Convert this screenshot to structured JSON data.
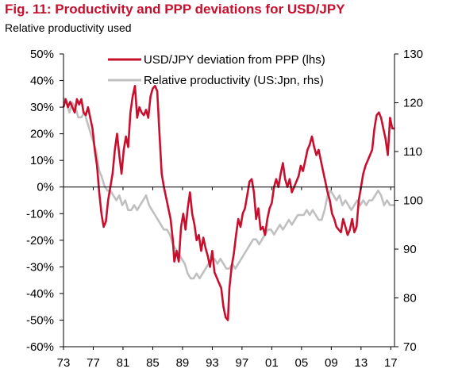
{
  "figure": {
    "title": "Fig. 11: Productivity and PPP deviations for USD/JPY",
    "subtitle": "Relative productivity used"
  },
  "colors": {
    "usd_jpy": "#c8102e",
    "productivity": "#c0c0c0",
    "title": "#c8102e",
    "axis": "#000000"
  },
  "chart_data": {
    "type": "line",
    "legend_position": "top",
    "grid": false,
    "x_range": [
      1973,
      2017.5
    ],
    "x_tick_labels": [
      "73",
      "77",
      "81",
      "85",
      "89",
      "93",
      "97",
      "01",
      "05",
      "09",
      "13",
      "17"
    ],
    "x_tick_years": [
      1973,
      1977,
      1981,
      1985,
      1989,
      1993,
      1997,
      2001,
      2005,
      2009,
      2013,
      2017
    ],
    "y_left_range": [
      -60,
      50
    ],
    "y_left_tick_values": [
      50,
      40,
      30,
      20,
      10,
      0,
      -10,
      -20,
      -30,
      -40,
      -50,
      -60
    ],
    "y_left_tick_labels": [
      "50%",
      "40%",
      "30%",
      "20%",
      "10%",
      "0%",
      "-10%",
      "-20%",
      "-30%",
      "-40%",
      "-50%",
      "-60%"
    ],
    "y_right_range": [
      70,
      130
    ],
    "y_right_tick_values": [
      130,
      120,
      110,
      100,
      90,
      80,
      70
    ],
    "y_right_tick_labels": [
      "130",
      "120",
      "110",
      "100",
      "90",
      "80",
      "70"
    ],
    "zero_line": 0,
    "series": [
      {
        "name": "USD/JPY deviation from PPP (lhs)",
        "axis": "left",
        "points": [
          [
            1973.0,
            30
          ],
          [
            1973.3,
            33
          ],
          [
            1973.6,
            30
          ],
          [
            1973.9,
            32
          ],
          [
            1974.2,
            30
          ],
          [
            1974.5,
            28
          ],
          [
            1974.8,
            33
          ],
          [
            1975.1,
            31
          ],
          [
            1975.4,
            33
          ],
          [
            1975.7,
            28
          ],
          [
            1976.0,
            27
          ],
          [
            1976.3,
            30
          ],
          [
            1976.6,
            26
          ],
          [
            1976.9,
            22
          ],
          [
            1977.2,
            14
          ],
          [
            1977.5,
            8
          ],
          [
            1977.8,
            -2
          ],
          [
            1978.1,
            -10
          ],
          [
            1978.4,
            -15
          ],
          [
            1978.7,
            -13
          ],
          [
            1979.0,
            -5
          ],
          [
            1979.3,
            0
          ],
          [
            1979.6,
            5
          ],
          [
            1979.9,
            14
          ],
          [
            1980.2,
            20
          ],
          [
            1980.5,
            12
          ],
          [
            1980.8,
            5
          ],
          [
            1981.1,
            14
          ],
          [
            1981.4,
            19
          ],
          [
            1981.7,
            15
          ],
          [
            1982.0,
            28
          ],
          [
            1982.3,
            34
          ],
          [
            1982.6,
            38
          ],
          [
            1982.9,
            26
          ],
          [
            1983.2,
            30
          ],
          [
            1983.5,
            28
          ],
          [
            1983.8,
            27
          ],
          [
            1984.1,
            29
          ],
          [
            1984.4,
            26
          ],
          [
            1984.7,
            34
          ],
          [
            1985.0,
            37
          ],
          [
            1985.3,
            38
          ],
          [
            1985.6,
            36
          ],
          [
            1985.9,
            20
          ],
          [
            1986.2,
            5
          ],
          [
            1986.5,
            0
          ],
          [
            1986.8,
            -4
          ],
          [
            1987.1,
            -8
          ],
          [
            1987.4,
            -12
          ],
          [
            1987.7,
            -20
          ],
          [
            1987.9,
            -28
          ],
          [
            1988.2,
            -24
          ],
          [
            1988.5,
            -28
          ],
          [
            1988.8,
            -15
          ],
          [
            1989.1,
            -10
          ],
          [
            1989.4,
            -16
          ],
          [
            1989.7,
            -8
          ],
          [
            1990.0,
            -2
          ],
          [
            1990.3,
            -10
          ],
          [
            1990.6,
            -14
          ],
          [
            1990.9,
            -20
          ],
          [
            1991.2,
            -18
          ],
          [
            1991.5,
            -24
          ],
          [
            1991.8,
            -19
          ],
          [
            1992.1,
            -23
          ],
          [
            1992.4,
            -26
          ],
          [
            1992.7,
            -30
          ],
          [
            1993.0,
            -24
          ],
          [
            1993.3,
            -32
          ],
          [
            1993.6,
            -34
          ],
          [
            1993.9,
            -36
          ],
          [
            1994.2,
            -38
          ],
          [
            1994.5,
            -45
          ],
          [
            1994.8,
            -49
          ],
          [
            1995.1,
            -50
          ],
          [
            1995.3,
            -38
          ],
          [
            1995.6,
            -30
          ],
          [
            1995.9,
            -25
          ],
          [
            1996.2,
            -18
          ],
          [
            1996.5,
            -12
          ],
          [
            1996.8,
            -15
          ],
          [
            1997.1,
            -10
          ],
          [
            1997.4,
            -8
          ],
          [
            1997.7,
            -3
          ],
          [
            1998.0,
            2
          ],
          [
            1998.3,
            3
          ],
          [
            1998.6,
            -2
          ],
          [
            1998.9,
            -12
          ],
          [
            1999.2,
            -8
          ],
          [
            1999.5,
            -16
          ],
          [
            1999.8,
            -15
          ],
          [
            2000.1,
            -18
          ],
          [
            2000.4,
            -12
          ],
          [
            2000.7,
            -8
          ],
          [
            2001.0,
            -6
          ],
          [
            2001.3,
            0
          ],
          [
            2001.6,
            3
          ],
          [
            2001.9,
            0
          ],
          [
            2002.2,
            5
          ],
          [
            2002.5,
            9
          ],
          [
            2002.8,
            3
          ],
          [
            2003.1,
            0
          ],
          [
            2003.4,
            3
          ],
          [
            2003.7,
            -2
          ],
          [
            2004.0,
            0
          ],
          [
            2004.3,
            2
          ],
          [
            2004.6,
            4
          ],
          [
            2004.9,
            8
          ],
          [
            2005.2,
            6
          ],
          [
            2005.5,
            10
          ],
          [
            2005.8,
            14
          ],
          [
            2006.1,
            16
          ],
          [
            2006.4,
            19
          ],
          [
            2006.7,
            15
          ],
          [
            2007.0,
            12
          ],
          [
            2007.3,
            14
          ],
          [
            2007.6,
            10
          ],
          [
            2007.9,
            6
          ],
          [
            2008.2,
            2
          ],
          [
            2008.5,
            -2
          ],
          [
            2008.8,
            -5
          ],
          [
            2009.1,
            -10
          ],
          [
            2009.4,
            -12
          ],
          [
            2009.7,
            -15
          ],
          [
            2010.0,
            -16
          ],
          [
            2010.3,
            -17
          ],
          [
            2010.6,
            -12
          ],
          [
            2010.9,
            -15
          ],
          [
            2011.2,
            -18
          ],
          [
            2011.5,
            -16
          ],
          [
            2011.8,
            -12
          ],
          [
            2012.1,
            -17
          ],
          [
            2012.4,
            -15
          ],
          [
            2012.7,
            -5
          ],
          [
            2013.0,
            0
          ],
          [
            2013.3,
            5
          ],
          [
            2013.6,
            8
          ],
          [
            2013.9,
            10
          ],
          [
            2014.2,
            12
          ],
          [
            2014.5,
            14
          ],
          [
            2014.8,
            22
          ],
          [
            2015.1,
            27
          ],
          [
            2015.4,
            28
          ],
          [
            2015.7,
            26
          ],
          [
            2016.0,
            22
          ],
          [
            2016.3,
            18
          ],
          [
            2016.6,
            12
          ],
          [
            2016.9,
            26
          ],
          [
            2017.2,
            22
          ],
          [
            2017.5,
            22
          ]
        ]
      },
      {
        "name": "Relative productivity (US:Jpn, rhs)",
        "axis": "right",
        "points": [
          [
            1973.0,
            121
          ],
          [
            1973.4,
            120
          ],
          [
            1973.8,
            118
          ],
          [
            1974.2,
            120
          ],
          [
            1974.6,
            119
          ],
          [
            1975.0,
            117
          ],
          [
            1975.4,
            117
          ],
          [
            1975.8,
            118
          ],
          [
            1976.2,
            116
          ],
          [
            1976.6,
            114
          ],
          [
            1977.0,
            112
          ],
          [
            1977.4,
            110
          ],
          [
            1977.8,
            106
          ],
          [
            1978.1,
            105
          ],
          [
            1978.5,
            103
          ],
          [
            1978.9,
            102
          ],
          [
            1979.3,
            102
          ],
          [
            1979.7,
            101
          ],
          [
            1980.1,
            100
          ],
          [
            1980.5,
            101
          ],
          [
            1980.9,
            99
          ],
          [
            1981.3,
            100
          ],
          [
            1981.7,
            98
          ],
          [
            1982.1,
            98
          ],
          [
            1982.5,
            99
          ],
          [
            1982.9,
            98
          ],
          [
            1983.3,
            99
          ],
          [
            1983.7,
            100
          ],
          [
            1984.1,
            101
          ],
          [
            1984.5,
            99
          ],
          [
            1984.9,
            98
          ],
          [
            1985.3,
            97
          ],
          [
            1985.7,
            96
          ],
          [
            1986.1,
            95
          ],
          [
            1986.5,
            94
          ],
          [
            1986.9,
            94
          ],
          [
            1987.3,
            93
          ],
          [
            1987.7,
            91
          ],
          [
            1988.1,
            90
          ],
          [
            1988.5,
            89
          ],
          [
            1988.9,
            88
          ],
          [
            1989.3,
            87
          ],
          [
            1989.7,
            85
          ],
          [
            1990.1,
            84
          ],
          [
            1990.5,
            84
          ],
          [
            1990.9,
            85
          ],
          [
            1991.3,
            84
          ],
          [
            1991.7,
            85
          ],
          [
            1992.1,
            86
          ],
          [
            1992.5,
            87
          ],
          [
            1992.9,
            88
          ],
          [
            1993.3,
            88
          ],
          [
            1993.7,
            87
          ],
          [
            1994.1,
            88
          ],
          [
            1994.5,
            87
          ],
          [
            1994.9,
            86
          ],
          [
            1995.3,
            86
          ],
          [
            1995.7,
            87
          ],
          [
            1996.1,
            86
          ],
          [
            1996.5,
            87
          ],
          [
            1996.9,
            88
          ],
          [
            1997.3,
            89
          ],
          [
            1997.7,
            90
          ],
          [
            1998.1,
            91
          ],
          [
            1998.5,
            92
          ],
          [
            1998.9,
            92
          ],
          [
            1999.3,
            91
          ],
          [
            1999.7,
            92
          ],
          [
            2000.1,
            93
          ],
          [
            2000.5,
            94
          ],
          [
            2000.9,
            94
          ],
          [
            2001.3,
            93
          ],
          [
            2001.7,
            94
          ],
          [
            2002.1,
            95
          ],
          [
            2002.5,
            94
          ],
          [
            2002.9,
            95
          ],
          [
            2003.3,
            96
          ],
          [
            2003.7,
            95
          ],
          [
            2004.1,
            96
          ],
          [
            2004.5,
            97
          ],
          [
            2004.9,
            97
          ],
          [
            2005.3,
            97
          ],
          [
            2005.7,
            98
          ],
          [
            2006.1,
            97
          ],
          [
            2006.5,
            98
          ],
          [
            2006.9,
            97
          ],
          [
            2007.3,
            96
          ],
          [
            2007.7,
            96
          ],
          [
            2008.1,
            98
          ],
          [
            2008.5,
            101
          ],
          [
            2008.9,
            102
          ],
          [
            2009.3,
            101
          ],
          [
            2009.7,
            100
          ],
          [
            2010.1,
            101
          ],
          [
            2010.5,
            99
          ],
          [
            2010.9,
            100
          ],
          [
            2011.3,
            99
          ],
          [
            2011.7,
            98
          ],
          [
            2012.1,
            99
          ],
          [
            2012.5,
            100
          ],
          [
            2012.9,
            99
          ],
          [
            2013.3,
            100
          ],
          [
            2013.7,
            99
          ],
          [
            2014.1,
            100
          ],
          [
            2014.5,
            100
          ],
          [
            2014.9,
            101
          ],
          [
            2015.3,
            102
          ],
          [
            2015.7,
            101
          ],
          [
            2016.1,
            99
          ],
          [
            2016.5,
            100
          ],
          [
            2016.9,
            99
          ],
          [
            2017.3,
            99
          ],
          [
            2017.5,
            99
          ]
        ]
      }
    ]
  }
}
